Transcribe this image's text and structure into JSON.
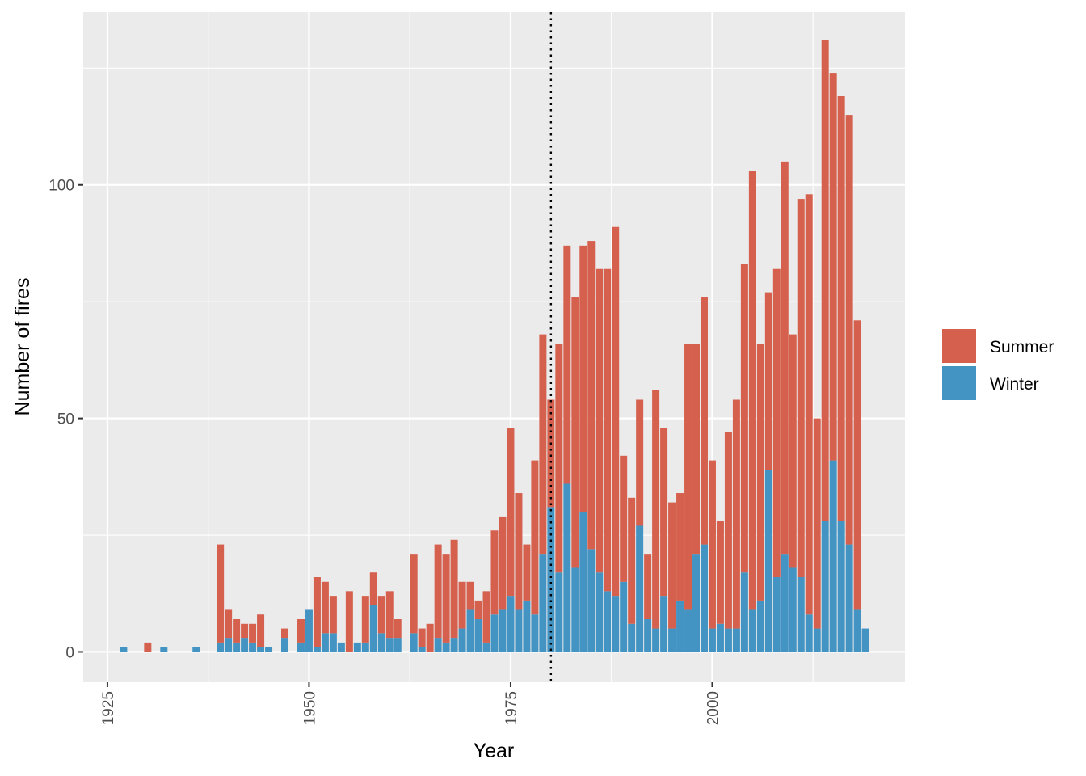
{
  "chart_data": {
    "type": "bar",
    "stacked": true,
    "xlabel": "Year",
    "ylabel": "Number of fires",
    "xlim": [
      1922,
      2023.9
    ],
    "ylim": [
      -6.5,
      137
    ],
    "x_ticks": [
      1925,
      1950,
      1975,
      2000
    ],
    "x_tick_labels": [
      "1925",
      "1950",
      "1975",
      "2000"
    ],
    "y_ticks": [
      0,
      50,
      100
    ],
    "y_tick_labels": [
      "0",
      "50",
      "100"
    ],
    "grid": true,
    "reference_line": {
      "x": 1980,
      "style": "dotted"
    },
    "legend": {
      "position": "right",
      "entries": [
        "Summer",
        "Winter"
      ]
    },
    "colors": {
      "Summer": "#d5604d",
      "Winter": "#4393c3",
      "panel": "#ebebeb",
      "grid": "#ffffff"
    },
    "x": [
      1927,
      1930,
      1932,
      1936,
      1939,
      1940,
      1941,
      1942,
      1943,
      1944,
      1945,
      1947,
      1949,
      1950,
      1951,
      1952,
      1953,
      1954,
      1955,
      1956,
      1957,
      1958,
      1959,
      1960,
      1961,
      1963,
      1964,
      1965,
      1966,
      1967,
      1968,
      1969,
      1970,
      1971,
      1972,
      1973,
      1974,
      1975,
      1976,
      1977,
      1978,
      1979,
      1980,
      1981,
      1982,
      1983,
      1984,
      1985,
      1986,
      1987,
      1988,
      1989,
      1990,
      1991,
      1992,
      1993,
      1994,
      1995,
      1996,
      1997,
      1998,
      1999,
      2000,
      2001,
      2002,
      2003,
      2004,
      2005,
      2006,
      2007,
      2008,
      2009,
      2010,
      2011,
      2012,
      2013,
      2014,
      2015,
      2016,
      2017,
      2018,
      2019
    ],
    "series": [
      {
        "name": "Winter",
        "values": [
          1,
          0,
          1,
          1,
          2,
          3,
          2,
          3,
          2,
          1,
          1,
          3,
          2,
          9,
          1,
          4,
          4,
          2,
          0,
          2,
          2,
          10,
          4,
          3,
          3,
          4,
          1,
          0,
          3,
          2,
          3,
          5,
          9,
          7,
          2,
          8,
          9,
          12,
          9,
          11,
          8,
          21,
          31,
          17,
          36,
          18,
          30,
          22,
          17,
          13,
          12,
          15,
          6,
          27,
          7,
          5,
          12,
          5,
          11,
          9,
          21,
          23,
          5,
          6,
          5,
          5,
          17,
          9,
          11,
          39,
          16,
          21,
          18,
          16,
          8,
          5,
          28,
          41,
          28,
          23,
          9,
          5
        ]
      },
      {
        "name": "Summer",
        "values": [
          0,
          2,
          0,
          0,
          21,
          6,
          5,
          3,
          4,
          7,
          0,
          2,
          5,
          0,
          15,
          11,
          8,
          0,
          13,
          0,
          10,
          7,
          8,
          10,
          4,
          17,
          4,
          6,
          20,
          19,
          21,
          10,
          6,
          4,
          11,
          18,
          20,
          36,
          25,
          12,
          33,
          47,
          23,
          49,
          51,
          58,
          57,
          66,
          65,
          69,
          79,
          27,
          27,
          27,
          14,
          51,
          36,
          27,
          23,
          57,
          45,
          53,
          36,
          22,
          42,
          49,
          66,
          94,
          55,
          38,
          66,
          84,
          50,
          81,
          90,
          45,
          103,
          83,
          91,
          92,
          62,
          0
        ]
      }
    ]
  }
}
